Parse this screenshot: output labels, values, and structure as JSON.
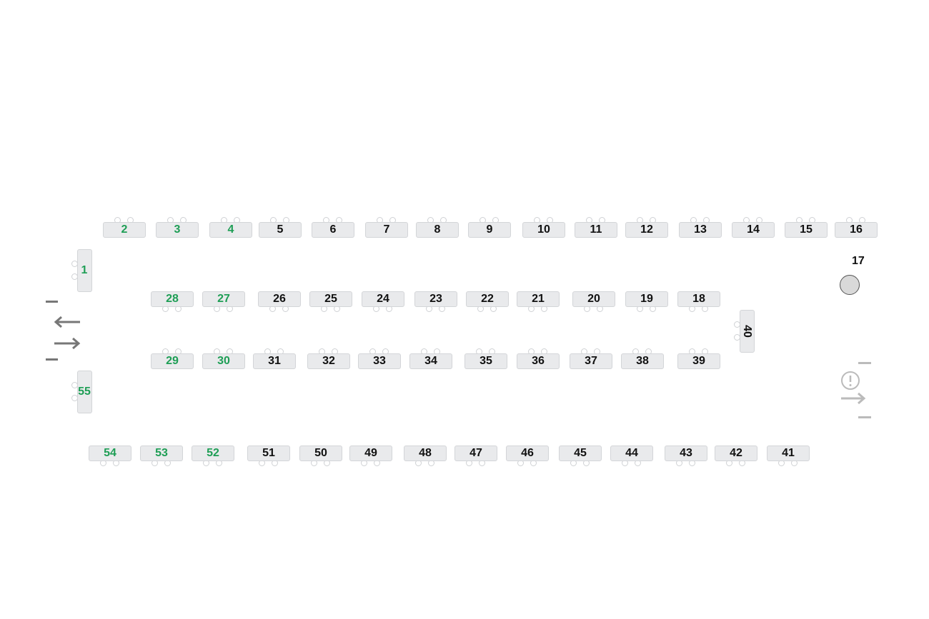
{
  "colors": {
    "available": "#1e9e55",
    "taken": "#111111",
    "table_fill": "#e9eaec",
    "table_border": "#d3d5d8",
    "exit_arrows": "#777777",
    "alert": "#bbbbbb"
  },
  "tables": [
    {
      "label": "1",
      "status": "available"
    },
    {
      "label": "2",
      "status": "available"
    },
    {
      "label": "3",
      "status": "available"
    },
    {
      "label": "4",
      "status": "available"
    },
    {
      "label": "5",
      "status": "taken"
    },
    {
      "label": "6",
      "status": "taken"
    },
    {
      "label": "7",
      "status": "taken"
    },
    {
      "label": "8",
      "status": "taken"
    },
    {
      "label": "9",
      "status": "taken"
    },
    {
      "label": "10",
      "status": "taken"
    },
    {
      "label": "11",
      "status": "taken"
    },
    {
      "label": "12",
      "status": "taken"
    },
    {
      "label": "13",
      "status": "taken"
    },
    {
      "label": "14",
      "status": "taken"
    },
    {
      "label": "15",
      "status": "taken"
    },
    {
      "label": "16",
      "status": "taken"
    },
    {
      "label": "18",
      "status": "taken"
    },
    {
      "label": "19",
      "status": "taken"
    },
    {
      "label": "20",
      "status": "taken"
    },
    {
      "label": "21",
      "status": "taken"
    },
    {
      "label": "22",
      "status": "taken"
    },
    {
      "label": "23",
      "status": "taken"
    },
    {
      "label": "24",
      "status": "taken"
    },
    {
      "label": "25",
      "status": "taken"
    },
    {
      "label": "26",
      "status": "taken"
    },
    {
      "label": "27",
      "status": "available"
    },
    {
      "label": "28",
      "status": "available"
    },
    {
      "label": "29",
      "status": "available"
    },
    {
      "label": "30",
      "status": "available"
    },
    {
      "label": "31",
      "status": "taken"
    },
    {
      "label": "32",
      "status": "taken"
    },
    {
      "label": "33",
      "status": "taken"
    },
    {
      "label": "34",
      "status": "taken"
    },
    {
      "label": "35",
      "status": "taken"
    },
    {
      "label": "36",
      "status": "taken"
    },
    {
      "label": "37",
      "status": "taken"
    },
    {
      "label": "38",
      "status": "taken"
    },
    {
      "label": "39",
      "status": "taken"
    },
    {
      "label": "40",
      "status": "taken"
    },
    {
      "label": "41",
      "status": "taken"
    },
    {
      "label": "42",
      "status": "taken"
    },
    {
      "label": "43",
      "status": "taken"
    },
    {
      "label": "44",
      "status": "taken"
    },
    {
      "label": "45",
      "status": "taken"
    },
    {
      "label": "46",
      "status": "taken"
    },
    {
      "label": "47",
      "status": "taken"
    },
    {
      "label": "48",
      "status": "taken"
    },
    {
      "label": "49",
      "status": "taken"
    },
    {
      "label": "50",
      "status": "taken"
    },
    {
      "label": "51",
      "status": "taken"
    },
    {
      "label": "52",
      "status": "available"
    },
    {
      "label": "53",
      "status": "available"
    },
    {
      "label": "54",
      "status": "available"
    },
    {
      "label": "55",
      "status": "available"
    }
  ],
  "round_table": {
    "label": "17",
    "status": "taken"
  },
  "icons": {
    "exit_left": "arrow-left-icon",
    "enter_right": "arrow-right-icon",
    "alert": "exclamation-circle-icon"
  }
}
